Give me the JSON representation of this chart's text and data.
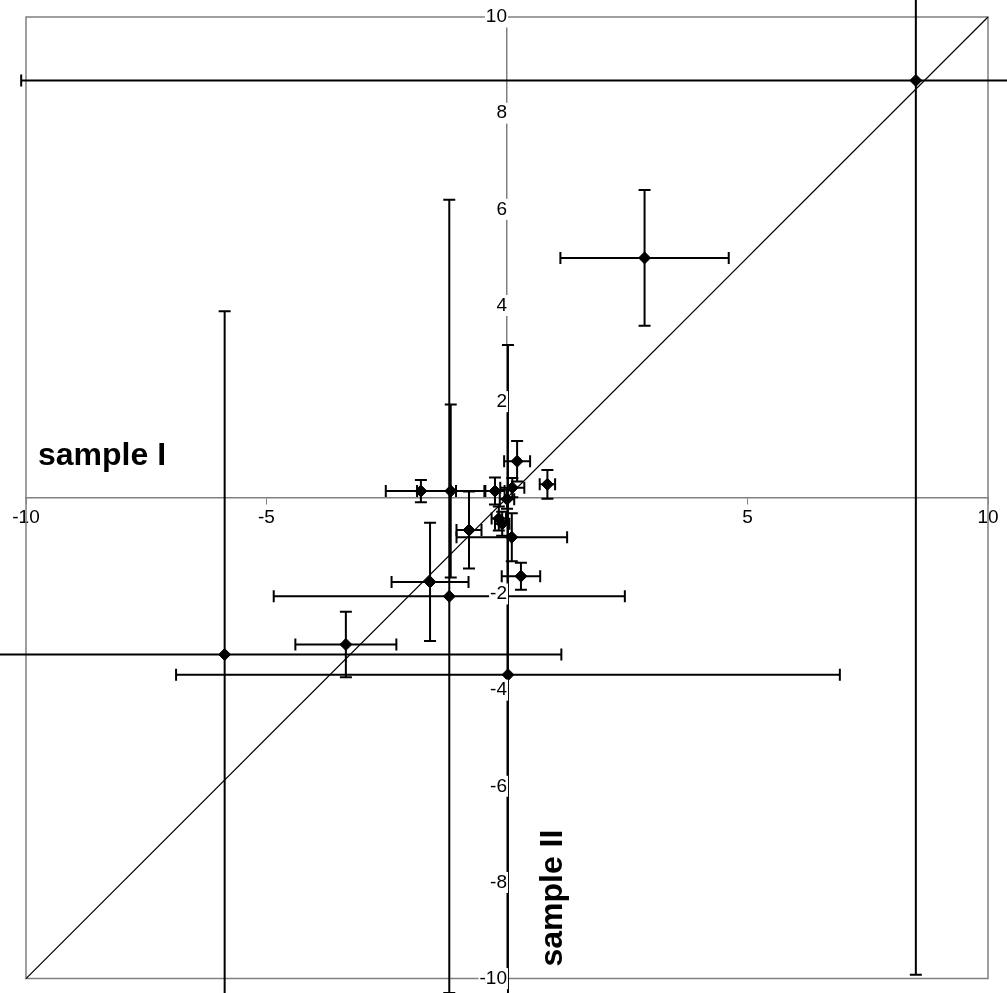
{
  "chart_data": {
    "type": "scatter",
    "xlabel": "sample I",
    "ylabel": "sample II",
    "xlim": [
      -10,
      10
    ],
    "xticks": [
      -10,
      -5,
      {
        "value": 0,
        "label": null
      },
      5,
      10
    ],
    "ylim": [
      -10,
      10
    ],
    "yticks": [
      -10,
      -8,
      -6,
      -4,
      -2,
      {
        "value": 0,
        "label": null
      },
      2,
      4,
      6,
      8,
      10
    ],
    "grid": false,
    "legend": false,
    "marker": "diamond",
    "series": [
      {
        "color": "#000000",
        "x": [
          8.5,
          2.86,
          -5.87,
          -3.35,
          0.02,
          -1.2,
          -1.6,
          0.29,
          -0.79,
          0.1,
          -1.79,
          -1.17,
          0.84,
          0.21,
          -0.25,
          0.11,
          0.0,
          -0.17,
          -0.1
        ],
        "values": [
          8.68,
          4.99,
          -3.26,
          -3.05,
          -3.68,
          -2.05,
          -1.75,
          -1.63,
          -0.67,
          -0.82,
          0.14,
          0.14,
          0.28,
          0.76,
          0.14,
          0.21,
          -0.03,
          -0.43,
          -0.54
        ],
        "errors": [
          18.6,
          1.41,
          7.14,
          0.68,
          6.86,
          8.25,
          1.23,
          0.28,
          0.8,
          0.5,
          0.23,
          1.8,
          0.3,
          0.42,
          0.28,
          0.2,
          0.2,
          0.25,
          0.25
        ],
        "xerrors": [
          18.6,
          1.75,
          7.0,
          1.05,
          6.9,
          3.65,
          0.8,
          0.4,
          0.26,
          1.15,
          0.73,
          0.7,
          0.16,
          0.27,
          0.2,
          0.25,
          0.15,
          0.15,
          0.15
        ]
      },
      {
        "type": "line",
        "marker": "none",
        "color": "#000000",
        "x": [
          -10,
          10
        ],
        "values": [
          -10,
          10
        ]
      }
    ]
  }
}
